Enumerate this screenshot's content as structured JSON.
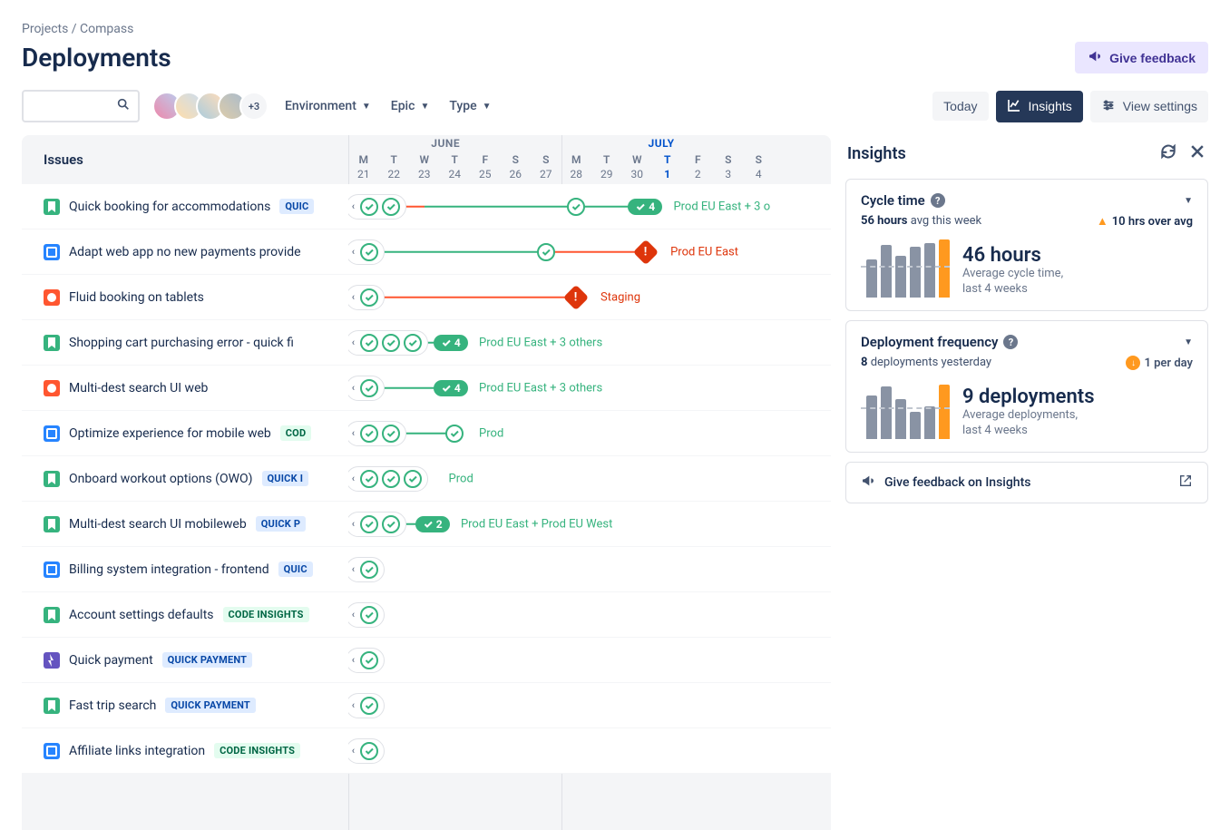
{
  "breadcrumb": "Projects / Compass",
  "page_title": "Deployments",
  "give_feedback": "Give feedback",
  "avatar_more": "+3",
  "filters": {
    "environment": "Environment",
    "epic": "Epic",
    "type": "Type"
  },
  "toolbar": {
    "today": "Today",
    "insights": "Insights",
    "view_settings": "View settings"
  },
  "issues_header": "Issues",
  "months": [
    "JUNE",
    "JULY"
  ],
  "days": [
    {
      "dow": "M",
      "n": "21"
    },
    {
      "dow": "T",
      "n": "22"
    },
    {
      "dow": "W",
      "n": "23"
    },
    {
      "dow": "T",
      "n": "24"
    },
    {
      "dow": "F",
      "n": "25"
    },
    {
      "dow": "S",
      "n": "26"
    },
    {
      "dow": "S",
      "n": "27"
    },
    {
      "dow": "M",
      "n": "28"
    },
    {
      "dow": "T",
      "n": "29"
    },
    {
      "dow": "W",
      "n": "30"
    },
    {
      "dow": "T",
      "n": "1",
      "today": true
    },
    {
      "dow": "F",
      "n": "2"
    },
    {
      "dow": "S",
      "n": "3"
    },
    {
      "dow": "S",
      "n": "4"
    }
  ],
  "day_width": 33.5,
  "colors": {
    "green": "#36B37E",
    "red": "#FF5630",
    "error": "#DE350B",
    "story": "#36B37E",
    "task": "#2684FF",
    "bug": "#FF5630",
    "epic": "#6554C0",
    "badge_blue_bg": "#DEEBFF",
    "badge_blue_fg": "#0747A6",
    "badge_green_bg": "#E3FCEF",
    "badge_green_fg": "#006644",
    "bar_gray": "#8993A4",
    "bar_orange": "#FF991F"
  },
  "issues": [
    {
      "icon": "story",
      "title": "Quick booking for accommodations",
      "badge": "QUIC",
      "badge_style": "blue"
    },
    {
      "icon": "task",
      "title": "Adapt web app no new payments provide"
    },
    {
      "icon": "bug",
      "title": "Fluid booking on tablets"
    },
    {
      "icon": "story",
      "title": "Shopping cart purchasing error - quick fi"
    },
    {
      "icon": "bug",
      "title": "Multi-dest search UI web"
    },
    {
      "icon": "task",
      "title": "Optimize experience for mobile web",
      "badge": "COD",
      "badge_style": "green"
    },
    {
      "icon": "story",
      "title": "Onboard workout options (OWO)",
      "badge": "QUICK I",
      "badge_style": "blue"
    },
    {
      "icon": "story",
      "title": "Multi-dest search UI mobileweb",
      "badge": "QUICK P",
      "badge_style": "blue"
    },
    {
      "icon": "task",
      "title": "Billing system integration - frontend",
      "badge": "QUIC",
      "badge_style": "blue"
    },
    {
      "icon": "story",
      "title": "Account settings defaults",
      "badge": "CODE INSIGHTS",
      "badge_style": "green"
    },
    {
      "icon": "epic",
      "title": "Quick payment",
      "badge": "QUICK PAYMENT",
      "badge_style": "blue"
    },
    {
      "icon": "story",
      "title": "Fast trip search",
      "badge": "QUICK PAYMENT",
      "badge_style": "blue"
    },
    {
      "icon": "task",
      "title": "Affiliate links integration",
      "badge": "CODE INSIGHTS",
      "badge_style": "green"
    }
  ],
  "timeline": [
    {
      "pill": true,
      "nodes": [
        1,
        3
      ],
      "node_at": 8,
      "lines": [
        {
          "from": 1,
          "to": 3,
          "c": "red"
        },
        {
          "from": 3,
          "to": 8,
          "c": "green"
        },
        {
          "from": 8,
          "to": 10,
          "c": "green"
        }
      ],
      "count": {
        "at": 10,
        "n": "4"
      },
      "label": {
        "at": 11.2,
        "text": "Prod EU East + 3 o"
      }
    },
    {
      "pill": true,
      "nodes": [
        1
      ],
      "node_at": 7,
      "lines": [
        {
          "from": 1,
          "to": 7,
          "c": "green"
        },
        {
          "from": 7,
          "to": 10.3,
          "c": "red"
        }
      ],
      "diamond": {
        "at": 10.3
      },
      "label": {
        "at": 11.1,
        "text": "Prod EU East",
        "c": "red"
      }
    },
    {
      "pill": true,
      "nodes": [
        1
      ],
      "lines": [
        {
          "from": 1,
          "to": 8,
          "c": "red"
        }
      ],
      "diamond": {
        "at": 8
      },
      "label": {
        "at": 8.8,
        "text": "Staging",
        "c": "red"
      }
    },
    {
      "pill": true,
      "nodes": [
        1,
        2,
        3
      ],
      "lines": [
        {
          "from": 1,
          "to": 3.5,
          "c": "green"
        }
      ],
      "count": {
        "at": 3.6,
        "n": "4"
      },
      "label": {
        "at": 4.8,
        "text": "Prod EU East + 3 others"
      }
    },
    {
      "pill": true,
      "nodes": [
        1
      ],
      "lines": [
        {
          "from": 1,
          "to": 3.5,
          "c": "green"
        }
      ],
      "count": {
        "at": 3.6,
        "n": "4"
      },
      "label": {
        "at": 4.8,
        "text": "Prod EU East + 3 others"
      }
    },
    {
      "pill": true,
      "nodes": [
        1,
        3
      ],
      "node_at": 4,
      "lines": [
        {
          "from": 1,
          "to": 4,
          "c": "green"
        }
      ],
      "label": {
        "at": 4.8,
        "text": "Prod"
      }
    },
    {
      "pill": true,
      "nodes": [
        1,
        2,
        3
      ],
      "lines": [],
      "label": {
        "at": 3.8,
        "text": "Prod"
      }
    },
    {
      "pill": true,
      "nodes": [
        1,
        2
      ],
      "lines": [
        {
          "from": 2,
          "to": 3,
          "c": "green"
        }
      ],
      "count": {
        "at": 3,
        "n": "2"
      },
      "label": {
        "at": 4.2,
        "text": "Prod EU East + Prod EU West"
      }
    },
    {
      "pill": true,
      "nodes": [
        1
      ]
    },
    {
      "pill": true,
      "nodes": [
        1
      ]
    },
    {
      "pill": true,
      "nodes": [
        1
      ]
    },
    {
      "pill": true,
      "nodes": [
        1
      ]
    },
    {
      "pill": true,
      "nodes": [
        1
      ]
    }
  ],
  "insights": {
    "title": "Insights",
    "cycle": {
      "title": "Cycle time",
      "metric_value": "56 hours",
      "metric_suffix": "avg this week",
      "delta": "10 hrs over avg",
      "big_value": "46 hours",
      "big_desc1": "Average cycle time,",
      "big_desc2": "last 4 weeks",
      "bars": [
        42,
        58,
        46,
        56,
        60,
        64
      ]
    },
    "freq": {
      "title": "Deployment frequency",
      "metric_value": "8",
      "metric_suffix": "deployments yesterday",
      "delta": "1 per day",
      "big_value": "9 deployments",
      "big_desc1": "Average deployments,",
      "big_desc2": "last 4 weeks",
      "bars": [
        48,
        58,
        44,
        30,
        36,
        60
      ]
    },
    "feedback": "Give feedback on Insights"
  }
}
